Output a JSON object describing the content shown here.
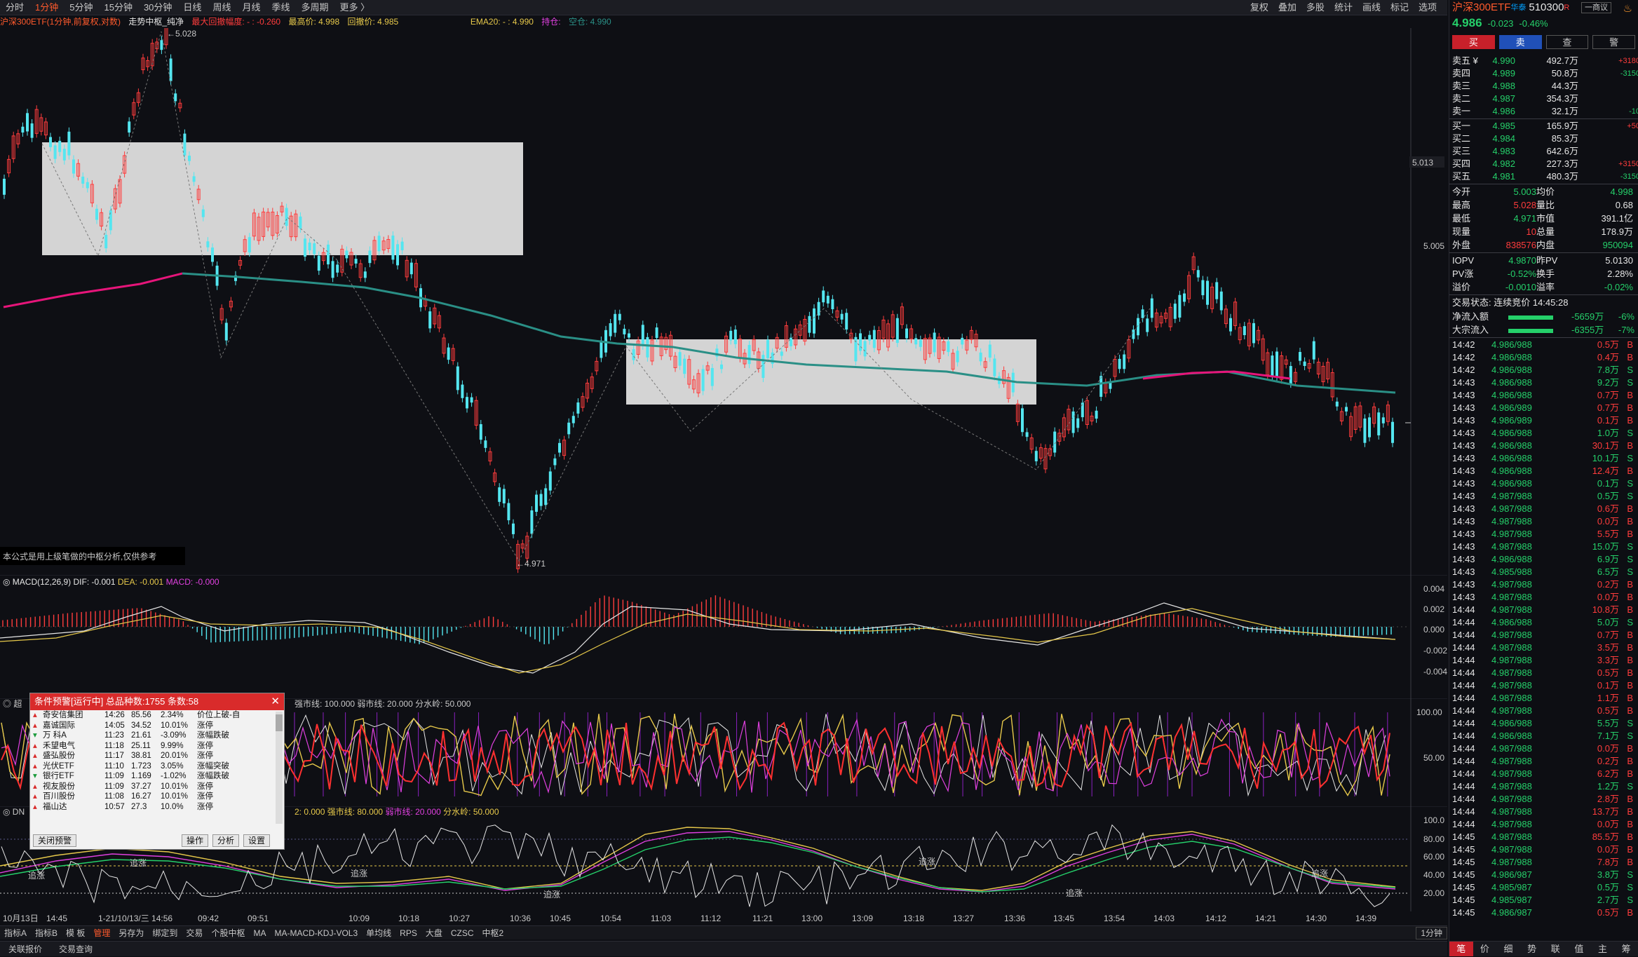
{
  "periods": [
    "分时",
    "1分钟",
    "5分钟",
    "15分钟",
    "30分钟",
    "日线",
    "周线",
    "月线",
    "季线",
    "多周期",
    "更多 〉"
  ],
  "active_period_index": 1,
  "top_right": [
    "复权",
    "叠加",
    "多股",
    "统计",
    "画线",
    "标记",
    "选项"
  ],
  "legend": {
    "instrument": "沪深300ETF(1分钟,前复权,对数)",
    "indicator": "走势中枢_纯净",
    "max_drawdown": "最大回撤幅度: - : -0.260",
    "high": "最高价: 4.998",
    "low": "回撤价: 4.985",
    "ema": "EMA20: - : 4.990",
    "ema_b": "持仓:",
    "ema_c": "空仓: 4.990"
  },
  "price_labels": {
    "high_mark": "5.028",
    "low_mark": "4.971",
    "axis_top": "5.013",
    "axis_mid": "5.005"
  },
  "note_text": "本公式是用上级笔做的中枢分析,仅供参考",
  "macd_legend": {
    "name": "MACD(12,26,9)",
    "dif": "DIF: -0.001",
    "dea": "DEA: -0.001",
    "macd": "MACD: -0.000"
  },
  "macd_axis": [
    "0.004",
    "0.002",
    "0.000",
    "-0.002",
    "-0.004"
  ],
  "osc_legend": {
    "strong": "强市线: 100.000",
    "weak": "弱市线: 20.000",
    "water": "分水岭: 50.000"
  },
  "osc_axis": [
    "100.00",
    "50.00"
  ],
  "dn_legend": {
    "name": "DN",
    "v": "2: 0.000",
    "strong": "强市线: 80.000",
    "weak": "弱市线: 20.000",
    "water": "分水岭: 50.000"
  },
  "dn_axis": [
    "100.0",
    "80.00",
    "60.00",
    "40.00",
    "20.00"
  ],
  "dn_marks": [
    "追涨",
    "追涨",
    "追涨",
    "追涨",
    "追涨",
    "追涨",
    "追涨"
  ],
  "time_labels": [
    "10月13日",
    "14:45",
    "1-21/10/13/三 14:56",
    "09:42",
    "09:51",
    "10:09",
    "10:18",
    "10:27",
    "10:36",
    "10:45",
    "10:54",
    "11:03",
    "11:12",
    "11:21",
    "13:00",
    "13:09",
    "13:18",
    "13:27",
    "13:36",
    "13:45",
    "13:54",
    "14:03",
    "14:12",
    "14:21",
    "14:30",
    "14:39"
  ],
  "toolbar": [
    "指标A",
    "指标B",
    "模 板",
    "管理",
    "另存为",
    "绑定到",
    "交易",
    "个股中枢",
    "MA",
    "MA-MACD-KDJ-VOL3",
    "单均线",
    "RPS",
    "大盘",
    "CZSC",
    "中枢2"
  ],
  "toolbar_active": 3,
  "toolbar_period": "1分钟",
  "statusbar": [
    "关联报价",
    "交易查询"
  ],
  "right": {
    "name": "沪深300ETF",
    "market": "华泰",
    "code": "510300",
    "rtag": "R",
    "btn_tag": "一商议",
    "price": "4.986",
    "change": "-0.023",
    "pct": "-0.46%",
    "buttons": [
      "买",
      "卖",
      "查",
      "警"
    ],
    "asks": [
      {
        "l": "卖五 ¥",
        "p": "4.990",
        "v": "492.7万",
        "d": "+3180"
      },
      {
        "l": "卖四",
        "p": "4.989",
        "v": "50.8万",
        "d": "-3150"
      },
      {
        "l": "卖三",
        "p": "4.988",
        "v": "44.3万",
        "d": ""
      },
      {
        "l": "卖二",
        "p": "4.987",
        "v": "354.3万",
        "d": ""
      },
      {
        "l": "卖一",
        "p": "4.986",
        "v": "32.1万",
        "d": "-10"
      }
    ],
    "bids": [
      {
        "l": "买一",
        "p": "4.985",
        "v": "165.9万",
        "d": "+50"
      },
      {
        "l": "买二",
        "p": "4.984",
        "v": "85.3万",
        "d": ""
      },
      {
        "l": "买三",
        "p": "4.983",
        "v": "642.6万",
        "d": ""
      },
      {
        "l": "买四",
        "p": "4.982",
        "v": "227.3万",
        "d": "+3150"
      },
      {
        "l": "买五",
        "p": "4.981",
        "v": "480.3万",
        "d": "-3150"
      }
    ],
    "info": [
      [
        "今开",
        "5.003",
        "均价",
        "4.998"
      ],
      [
        "最高",
        "5.028",
        "量比",
        "0.68"
      ],
      [
        "最低",
        "4.971",
        "市值",
        "391.1亿"
      ],
      [
        "现量",
        "10",
        "总量",
        "178.9万"
      ],
      [
        "外盘",
        "838576",
        "内盘",
        "950094"
      ]
    ],
    "info2": [
      [
        "IOPV",
        "4.9870",
        "昨PV",
        "5.0130"
      ],
      [
        "PV涨",
        "-0.52%",
        "换手",
        "2.28%"
      ],
      [
        "溢价",
        "-0.0010",
        "溢率",
        "-0.02%"
      ]
    ],
    "trade_status": "交易状态: 连续竞价 14:45:28",
    "flows": [
      {
        "l": "净流入额",
        "v": "-5659万",
        "p": "-6%"
      },
      {
        "l": "大宗流入",
        "v": "-6355万",
        "p": "-7%"
      }
    ],
    "ticks": [
      [
        "14:42",
        "4.986/988",
        "0.5万",
        "B"
      ],
      [
        "14:42",
        "4.986/988",
        "0.4万",
        "B"
      ],
      [
        "14:42",
        "4.986/988",
        "7.8万",
        "S"
      ],
      [
        "14:43",
        "4.986/988",
        "9.2万",
        "S"
      ],
      [
        "14:43",
        "4.986/988",
        "0.7万",
        "B"
      ],
      [
        "14:43",
        "4.986/989",
        "0.7万",
        "B"
      ],
      [
        "14:43",
        "4.986/989",
        "0.1万",
        "B"
      ],
      [
        "14:43",
        "4.986/988",
        "1.0万",
        "S"
      ],
      [
        "14:43",
        "4.986/988",
        "30.1万",
        "B"
      ],
      [
        "14:43",
        "4.986/988",
        "10.1万",
        "S"
      ],
      [
        "14:43",
        "4.986/988",
        "12.4万",
        "B"
      ],
      [
        "14:43",
        "4.986/988",
        "0.1万",
        "S"
      ],
      [
        "14:43",
        "4.987/988",
        "0.5万",
        "S"
      ],
      [
        "14:43",
        "4.987/988",
        "0.6万",
        "B"
      ],
      [
        "14:43",
        "4.987/988",
        "0.0万",
        "B"
      ],
      [
        "14:43",
        "4.987/988",
        "5.5万",
        "B"
      ],
      [
        "14:43",
        "4.987/988",
        "15.0万",
        "S"
      ],
      [
        "14:43",
        "4.986/988",
        "6.9万",
        "S"
      ],
      [
        "14:43",
        "4.985/988",
        "6.5万",
        "S"
      ],
      [
        "14:43",
        "4.987/988",
        "0.2万",
        "B"
      ],
      [
        "14:43",
        "4.987/988",
        "0.0万",
        "B"
      ],
      [
        "14:44",
        "4.987/988",
        "10.8万",
        "B"
      ],
      [
        "14:44",
        "4.986/988",
        "5.0万",
        "S"
      ],
      [
        "14:44",
        "4.987/988",
        "0.7万",
        "B"
      ],
      [
        "14:44",
        "4.987/988",
        "3.5万",
        "B"
      ],
      [
        "14:44",
        "4.987/988",
        "3.3万",
        "B"
      ],
      [
        "14:44",
        "4.987/988",
        "0.5万",
        "B"
      ],
      [
        "14:44",
        "4.987/988",
        "0.1万",
        "B"
      ],
      [
        "14:44",
        "4.987/988",
        "1.1万",
        "B"
      ],
      [
        "14:44",
        "4.987/988",
        "0.5万",
        "B"
      ],
      [
        "14:44",
        "4.986/988",
        "5.5万",
        "S"
      ],
      [
        "14:44",
        "4.986/988",
        "7.1万",
        "S"
      ],
      [
        "14:44",
        "4.987/988",
        "0.0万",
        "B"
      ],
      [
        "14:44",
        "4.987/988",
        "0.2万",
        "B"
      ],
      [
        "14:44",
        "4.987/988",
        "6.2万",
        "B"
      ],
      [
        "14:44",
        "4.987/988",
        "1.2万",
        "S"
      ],
      [
        "14:44",
        "4.987/988",
        "2.8万",
        "B"
      ],
      [
        "14:44",
        "4.987/988",
        "13.7万",
        "B"
      ],
      [
        "14:44",
        "4.987/988",
        "0.0万",
        "B"
      ],
      [
        "14:45",
        "4.987/988",
        "85.5万",
        "B"
      ],
      [
        "14:45",
        "4.987/988",
        "0.0万",
        "B"
      ],
      [
        "14:45",
        "4.987/988",
        "7.8万",
        "B"
      ],
      [
        "14:45",
        "4.986/987",
        "3.8万",
        "S"
      ],
      [
        "14:45",
        "4.985/987",
        "0.5万",
        "S"
      ],
      [
        "14:45",
        "4.985/987",
        "2.7万",
        "S"
      ],
      [
        "14:45",
        "4.986/987",
        "0.5万",
        "B"
      ]
    ],
    "footer": [
      "笔",
      "价",
      "细",
      "势",
      "联",
      "值",
      "主",
      "筹"
    ]
  },
  "alert": {
    "title": "条件预警[运行中] 总品种数:1755 条数:58",
    "rows": [
      [
        "奇安信集团",
        "14:26",
        "85.56",
        "2.34%",
        "价位上破-自"
      ],
      [
        "嘉诚国际",
        "14:05",
        "34.52",
        "10.01%",
        "涨停"
      ],
      [
        "万 科A",
        "11:23",
        "21.61",
        "-3.09%",
        "涨幅跌破"
      ],
      [
        "禾望电气",
        "11:18",
        "25.11",
        "9.99%",
        "涨停"
      ],
      [
        "盛弘股份",
        "11:17",
        "38.81",
        "20.01%",
        "涨停"
      ],
      [
        "光伏ETF",
        "11:10",
        "1.723",
        "3.05%",
        "涨幅突破"
      ],
      [
        "银行ETF",
        "11:09",
        "1.169",
        "-1.02%",
        "涨幅跌破"
      ],
      [
        "视友股份",
        "11:09",
        "37.27",
        "10.01%",
        "涨停"
      ],
      [
        "百川股份",
        "11:08",
        "16.27",
        "10.01%",
        "涨停"
      ],
      [
        "福山达",
        "10:57",
        "27.3",
        "10.0%",
        "涨停"
      ]
    ],
    "footer": [
      "关闭预警",
      "操作",
      "分析",
      "设置"
    ],
    "colors": {
      "up": "#d92b2b",
      "down": "#1a9a3a"
    }
  },
  "colors": {
    "up": "#ff3c3c",
    "down": "#54e6f0",
    "ema_pink": "#e6157a",
    "ema_teal": "#2a8f86",
    "zone": "#d4d4d4"
  }
}
